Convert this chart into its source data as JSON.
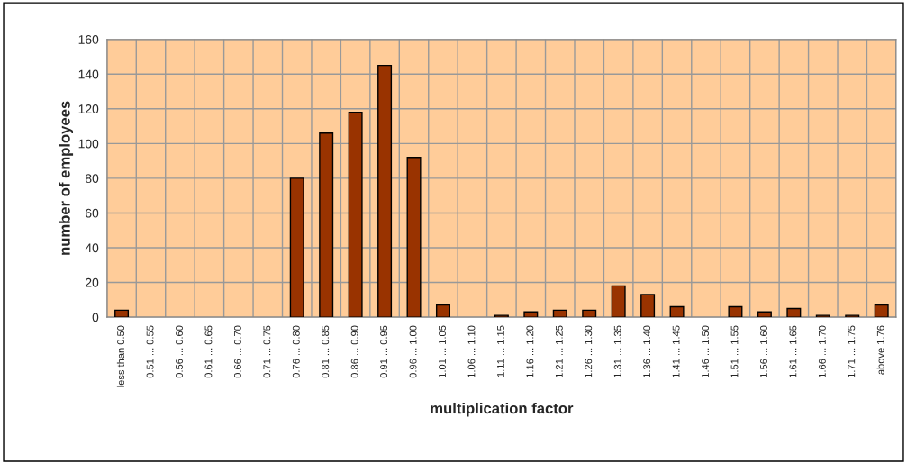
{
  "chart_data": {
    "type": "bar",
    "xlabel": "multiplication factor",
    "ylabel": "number of employees",
    "categories": [
      "less than 0.50",
      "0.51 ... 0.55",
      "0.56 ... 0.60",
      "0.61 ... 0.65",
      "0.66 ... 0.70",
      "0.71 ... 0.75",
      "0.76 ... 0.80",
      "0.81 ... 0.85",
      "0.86 ... 0.90",
      "0.91 ... 0.95",
      "0.96 ... 1.00",
      "1.01 ... 1.05",
      "1.06 ... 1.10",
      "1.11 ... 1.15",
      "1.16 ... 1.20",
      "1.21 ... 1.25",
      "1.26 ... 1.30",
      "1.31 ... 1.35",
      "1.36 ... 1.40",
      "1.41 ... 1.45",
      "1.46 ... 1.50",
      "1.51 ... 1.55",
      "1.56 ... 1.60",
      "1.61 ... 1.65",
      "1.66 ... 1.70",
      "1.71 ... 1.75",
      "above 1.76"
    ],
    "values": [
      4,
      0,
      0,
      0,
      0,
      0,
      80,
      106,
      118,
      145,
      92,
      7,
      0,
      1,
      3,
      4,
      4,
      18,
      13,
      6,
      0,
      6,
      3,
      5,
      1,
      1,
      7
    ],
    "color": "#993300",
    "ylim": [
      0,
      160
    ],
    "yticks": [
      0,
      20,
      40,
      60,
      80,
      100,
      120,
      140,
      160
    ],
    "grid": true
  }
}
